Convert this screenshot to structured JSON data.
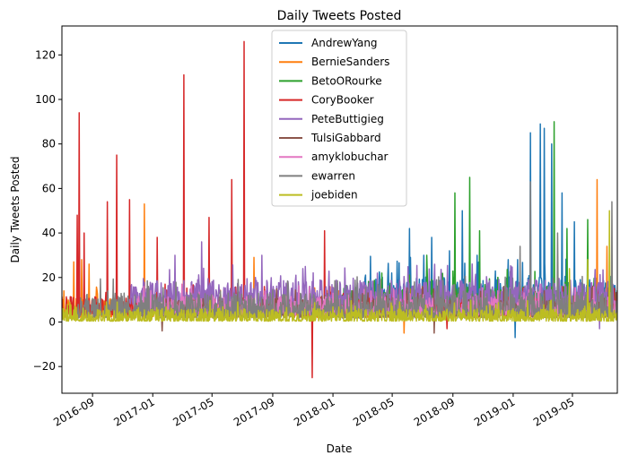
{
  "chart_data": {
    "type": "line",
    "title": "Daily Tweets Posted",
    "xlabel": "Date",
    "ylabel": "Daily Tweets Posted",
    "xlim": [
      "2016-07-01",
      "2019-07-31"
    ],
    "ylim": [
      -32,
      133
    ],
    "x_ticks": [
      "2016-09",
      "2017-01",
      "2017-05",
      "2017-09",
      "2018-01",
      "2018-05",
      "2018-09",
      "2019-01",
      "2019-05"
    ],
    "y_ticks": [
      -20,
      0,
      20,
      40,
      60,
      80,
      100,
      120
    ],
    "grid": false,
    "legend_position": "top-center",
    "series": [
      {
        "name": "AndrewYang",
        "color": "#1f77b4",
        "start": "2018-02-15",
        "end": "2019-07-31",
        "base": 8,
        "noise": 10,
        "peaks": [
          [
            "2018-06-05",
            42
          ],
          [
            "2018-07-20",
            38
          ],
          [
            "2018-08-25",
            32
          ],
          [
            "2018-09-20",
            50
          ],
          [
            "2018-10-20",
            30
          ],
          [
            "2018-12-01",
            20
          ],
          [
            "2019-01-10",
            28
          ],
          [
            "2019-01-05",
            -7
          ],
          [
            "2019-02-05",
            85
          ],
          [
            "2019-02-25",
            89
          ],
          [
            "2019-03-05",
            87
          ],
          [
            "2019-03-20",
            80
          ],
          [
            "2019-04-10",
            58
          ],
          [
            "2019-05-05",
            45
          ]
        ]
      },
      {
        "name": "BernieSanders",
        "color": "#ff7f0e",
        "start": "2016-07-01",
        "end": "2019-07-31",
        "base": 3,
        "noise": 6,
        "peaks": [
          [
            "2016-07-05",
            14
          ],
          [
            "2016-07-25",
            27
          ],
          [
            "2016-08-10",
            28
          ],
          [
            "2016-08-25",
            26
          ],
          [
            "2016-12-15",
            53
          ],
          [
            "2017-07-25",
            29
          ],
          [
            "2018-05-25",
            -5
          ],
          [
            "2019-06-20",
            64
          ],
          [
            "2019-07-10",
            34
          ]
        ]
      },
      {
        "name": "BetoORourke",
        "color": "#2ca02c",
        "start": "2018-01-15",
        "end": "2019-07-31",
        "base": 6,
        "noise": 8,
        "peaks": [
          [
            "2018-04-10",
            22
          ],
          [
            "2018-07-10",
            30
          ],
          [
            "2018-09-05",
            58
          ],
          [
            "2018-10-05",
            65
          ],
          [
            "2018-10-25",
            41
          ],
          [
            "2019-03-25",
            90
          ],
          [
            "2019-04-20",
            42
          ],
          [
            "2019-06-01",
            46
          ]
        ]
      },
      {
        "name": "CoryBooker",
        "color": "#d62728",
        "start": "2016-07-01",
        "end": "2019-07-31",
        "base": 4,
        "noise": 6,
        "peaks": [
          [
            "2016-08-01",
            48
          ],
          [
            "2016-08-05",
            94
          ],
          [
            "2016-08-15",
            40
          ],
          [
            "2016-10-01",
            54
          ],
          [
            "2016-10-20",
            75
          ],
          [
            "2016-11-15",
            55
          ],
          [
            "2017-01-10",
            38
          ],
          [
            "2017-03-05",
            111
          ],
          [
            "2017-04-25",
            47
          ],
          [
            "2017-06-10",
            64
          ],
          [
            "2017-07-05",
            126
          ],
          [
            "2017-11-20",
            -25
          ],
          [
            "2017-12-15",
            41
          ],
          [
            "2018-06-15",
            10
          ],
          [
            "2018-08-20",
            -3
          ]
        ]
      },
      {
        "name": "PeteButtigieg",
        "color": "#9467bd",
        "start": "2016-11-15",
        "end": "2019-07-31",
        "base": 9,
        "noise": 8,
        "peaks": [
          [
            "2017-02-15",
            30
          ],
          [
            "2017-04-10",
            36
          ],
          [
            "2017-08-10",
            30
          ],
          [
            "2017-11-01",
            24
          ],
          [
            "2018-04-01",
            22
          ],
          [
            "2019-02-01",
            19
          ],
          [
            "2019-06-25",
            -3
          ]
        ]
      },
      {
        "name": "TulsiGabbard",
        "color": "#8c564b",
        "start": "2017-01-15",
        "end": "2019-07-31",
        "base": 3,
        "noise": 6,
        "peaks": [
          [
            "2017-01-20",
            -4
          ],
          [
            "2018-02-10",
            14
          ],
          [
            "2018-07-01",
            16
          ],
          [
            "2018-07-25",
            -5
          ],
          [
            "2019-06-01",
            20
          ]
        ]
      },
      {
        "name": "amyklobuchar",
        "color": "#e377c2",
        "start": "2016-12-01",
        "end": "2019-07-31",
        "base": 4,
        "noise": 6,
        "peaks": [
          [
            "2017-03-01",
            17
          ],
          [
            "2018-06-15",
            12
          ],
          [
            "2019-02-15",
            13
          ]
        ]
      },
      {
        "name": "ewarren",
        "color": "#7f7f7f",
        "start": "2016-08-01",
        "end": "2019-07-31",
        "base": 3,
        "noise": 8,
        "peaks": [
          [
            "2016-08-20",
            12
          ],
          [
            "2016-10-01",
            8
          ],
          [
            "2018-06-15",
            18
          ],
          [
            "2019-01-15",
            34
          ],
          [
            "2019-02-05",
            63
          ],
          [
            "2019-04-01",
            40
          ],
          [
            "2019-07-20",
            54
          ]
        ]
      },
      {
        "name": "joebiden",
        "color": "#bcbd22",
        "start": "2016-07-01",
        "end": "2019-07-31",
        "base": 1,
        "noise": 4,
        "peaks": [
          [
            "2019-04-25",
            24
          ],
          [
            "2019-06-01",
            28
          ],
          [
            "2019-07-15",
            50
          ]
        ]
      }
    ]
  }
}
